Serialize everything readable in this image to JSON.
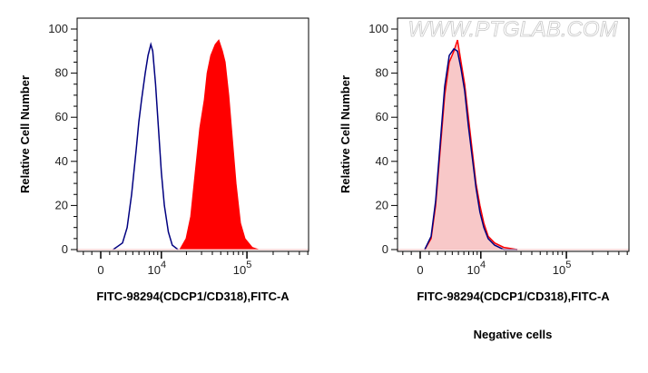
{
  "watermark": "WWW.PTGLAB.COM",
  "caption": "Negative cells",
  "colors": {
    "stained": "#ff0000",
    "control": "#000080",
    "negative_fill": "#f8c8c8"
  },
  "chart_data": [
    {
      "type": "area",
      "xlabel": "FITC-98294(CDCP1/CD318),FITC-A",
      "ylabel": "Relative Cell Number",
      "x_scale": "biexponential",
      "xlim": [
        -2700,
        510000
      ],
      "ylim": [
        0,
        100
      ],
      "x_ticks": [
        {
          "value": 0,
          "label": "0"
        },
        {
          "value": 10000,
          "label": "10",
          "exp": "4"
        },
        {
          "value": 100000,
          "label": "10",
          "exp": "5"
        }
      ],
      "y_ticks": [
        "0",
        "20",
        "40",
        "60",
        "80",
        "100"
      ],
      "grid": false,
      "series": [
        {
          "style": "line",
          "color": "#000080",
          "x": [
            1400,
            2550,
            3170,
            3820,
            4530,
            4980,
            5460,
            6160,
            6720,
            7330,
            7760,
            8450,
            9200,
            10000,
            10900,
            12200,
            13600,
            15900
          ],
          "y": [
            0,
            3,
            10,
            25,
            45,
            58,
            68,
            80,
            88,
            93,
            90,
            75,
            55,
            35,
            20,
            8,
            2,
            0
          ]
        },
        {
          "style": "filled",
          "color": "#ff0000",
          "x": [
            16700,
            19800,
            22400,
            25300,
            28600,
            32300,
            34800,
            38300,
            43100,
            47500,
            52300,
            56200,
            61900,
            68100,
            75000,
            84400,
            95100,
            115000,
            136000
          ],
          "y": [
            0,
            5,
            15,
            35,
            55,
            68,
            80,
            88,
            93,
            95,
            90,
            85,
            70,
            50,
            30,
            12,
            5,
            1,
            0
          ]
        }
      ]
    },
    {
      "type": "area",
      "xlabel": "FITC-98294(CDCP1/CD318),FITC-A",
      "ylabel": "Relative Cell Number",
      "x_scale": "biexponential",
      "xlim": [
        -2700,
        510000
      ],
      "ylim": [
        0,
        100
      ],
      "x_ticks": [
        {
          "value": 0,
          "label": "0"
        },
        {
          "value": 10000,
          "label": "10",
          "exp": "4"
        },
        {
          "value": 100000,
          "label": "10",
          "exp": "5"
        }
      ],
      "y_ticks": [
        "0",
        "20",
        "40",
        "60",
        "80",
        "100"
      ],
      "grid": false,
      "series": [
        {
          "style": "filled-light",
          "color": "#ff0000",
          "x": [
            500,
            1230,
            1760,
            2320,
            2910,
            3550,
            4250,
            4850,
            5460,
            6160,
            6920,
            7760,
            8690,
            9740,
            10900,
            12300,
            14700,
            18900,
            27200
          ],
          "y": [
            0,
            5,
            20,
            45,
            70,
            85,
            90,
            95,
            85,
            75,
            60,
            45,
            30,
            20,
            12,
            6,
            3,
            1,
            0
          ]
        },
        {
          "style": "line",
          "color": "#000080",
          "x": [
            500,
            1230,
            1760,
            2320,
            2910,
            3550,
            4250,
            4850,
            5460,
            6160,
            6920,
            7760,
            8690,
            9740,
            10900,
            12300,
            14700,
            18900,
            27200
          ],
          "y": [
            0,
            6,
            22,
            48,
            74,
            88,
            91,
            90,
            82,
            72,
            56,
            42,
            28,
            17,
            10,
            5,
            2,
            0,
            0
          ]
        }
      ]
    }
  ]
}
